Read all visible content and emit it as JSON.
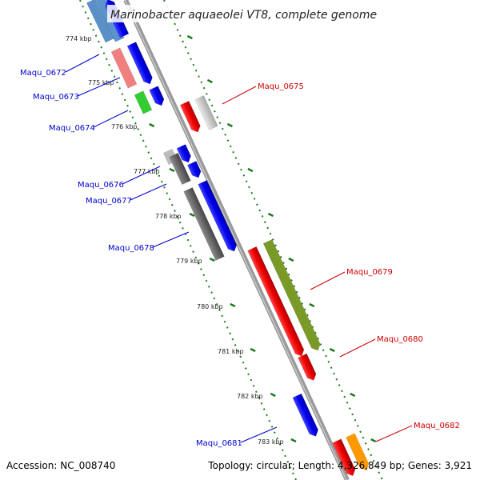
{
  "title": "Marinobacter aquaeolei VT8, complete genome",
  "footer": {
    "accession": "Accession: NC_008740",
    "topology": "Topology: circular; Length: 4,326,849 bp; Genes: 3,921"
  },
  "ticks": [
    {
      "label": "774 kbp",
      "kbp": 774
    },
    {
      "label": "775 kbp",
      "kbp": 775
    },
    {
      "label": "776 kbp",
      "kbp": 776
    },
    {
      "label": "777 kbp",
      "kbp": 777
    },
    {
      "label": "778 kbp",
      "kbp": 778
    },
    {
      "label": "779 kbp",
      "kbp": 779
    },
    {
      "label": "780 kbp",
      "kbp": 780
    },
    {
      "label": "781 kbp",
      "kbp": 781
    },
    {
      "label": "782 kbp",
      "kbp": 782
    },
    {
      "label": "783 kbp",
      "kbp": 783
    }
  ],
  "gene_labels": [
    {
      "text": "Maqu_0672",
      "color": "#0000cc",
      "strand": "reverse"
    },
    {
      "text": "Maqu_0673",
      "color": "#0000cc",
      "strand": "reverse"
    },
    {
      "text": "Maqu_0674",
      "color": "#0000cc",
      "strand": "reverse"
    },
    {
      "text": "Maqu_0675",
      "color": "#cc0000",
      "strand": "forward"
    },
    {
      "text": "Maqu_0676",
      "color": "#0000cc",
      "strand": "reverse"
    },
    {
      "text": "Maqu_0677",
      "color": "#0000cc",
      "strand": "reverse"
    },
    {
      "text": "Maqu_0678",
      "color": "#0000cc",
      "strand": "reverse"
    },
    {
      "text": "Maqu_0679",
      "color": "#cc0000",
      "strand": "forward"
    },
    {
      "text": "Maqu_0680",
      "color": "#cc0000",
      "strand": "forward"
    },
    {
      "text": "Maqu_0681",
      "color": "#0000cc",
      "strand": "reverse"
    },
    {
      "text": "Maqu_0682",
      "color": "#cc0000",
      "strand": "forward"
    }
  ],
  "colors": {
    "backbone": "#8c8c8c",
    "tick_track": "#1a7a1a",
    "forward_label": "#cc0000",
    "reverse_label": "#0000cc"
  }
}
